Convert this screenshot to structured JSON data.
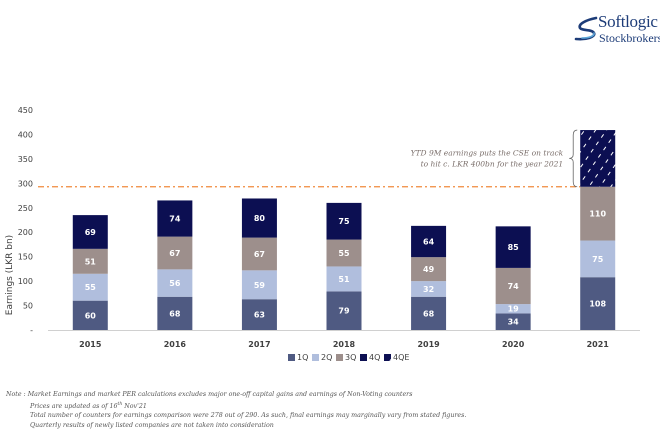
{
  "brand": {
    "name": "Softlogic",
    "subtitle": "Stockbrokers"
  },
  "colors": {
    "1Q": "#4f5a82",
    "2Q": "#b0bedd",
    "3Q": "#9d8f8c",
    "4Q": "#0c0f52",
    "4QE": "#0c0f52",
    "reference_line": "#f08a3c"
  },
  "chart_data": {
    "type": "bar",
    "stacked": true,
    "title": "",
    "xlabel": "",
    "ylabel": "Earnings (LKR bn)",
    "ylim": [
      0,
      450
    ],
    "yticks": [
      0,
      50,
      100,
      150,
      200,
      250,
      300,
      350,
      400,
      450
    ],
    "ytick_labels": [
      "-",
      "50",
      "100",
      "150",
      "200",
      "250",
      "300",
      "350",
      "400",
      "450"
    ],
    "grid": false,
    "categories": [
      "2015",
      "2016",
      "2017",
      "2018",
      "2019",
      "2020",
      "2021"
    ],
    "series": [
      {
        "name": "1Q",
        "values": [
          60,
          68,
          63,
          79,
          68,
          34,
          108
        ]
      },
      {
        "name": "2Q",
        "values": [
          55,
          56,
          59,
          51,
          32,
          19,
          75
        ]
      },
      {
        "name": "3Q",
        "values": [
          51,
          67,
          67,
          55,
          49,
          74,
          110
        ]
      },
      {
        "name": "4Q",
        "values": [
          69,
          74,
          80,
          75,
          64,
          85,
          null
        ]
      },
      {
        "name": "4QE",
        "values": [
          null,
          null,
          null,
          null,
          null,
          null,
          116
        ],
        "pattern": "hatched",
        "labeled": false
      }
    ],
    "reference_line": {
      "y": 293,
      "style": "dash-dot"
    },
    "annotation": {
      "lines": [
        "YTD 9M earnings puts the CSE on track",
        "to hit c. LKR 400bn for the year 2021"
      ],
      "target_category": "2021"
    },
    "legend": {
      "placement": "bottom-center",
      "entries": [
        "1Q",
        "2Q",
        "3Q",
        "4Q",
        "4QE"
      ]
    }
  },
  "notes": {
    "prefix": "Note : ",
    "lines": [
      "Market Earnings and market PER calculations excludes major one-off capital gains and earnings of Non-Voting counters",
      "Prices are updated as of 16",
      "Total number of counters for earnings comparison were 278 out of 290. As such, final earnings may marginally vary from stated figures.",
      "Quarterly results of newly listed companies are not taken into consideration"
    ],
    "date_superscript": "th",
    "date_suffix": " Nov'21"
  }
}
